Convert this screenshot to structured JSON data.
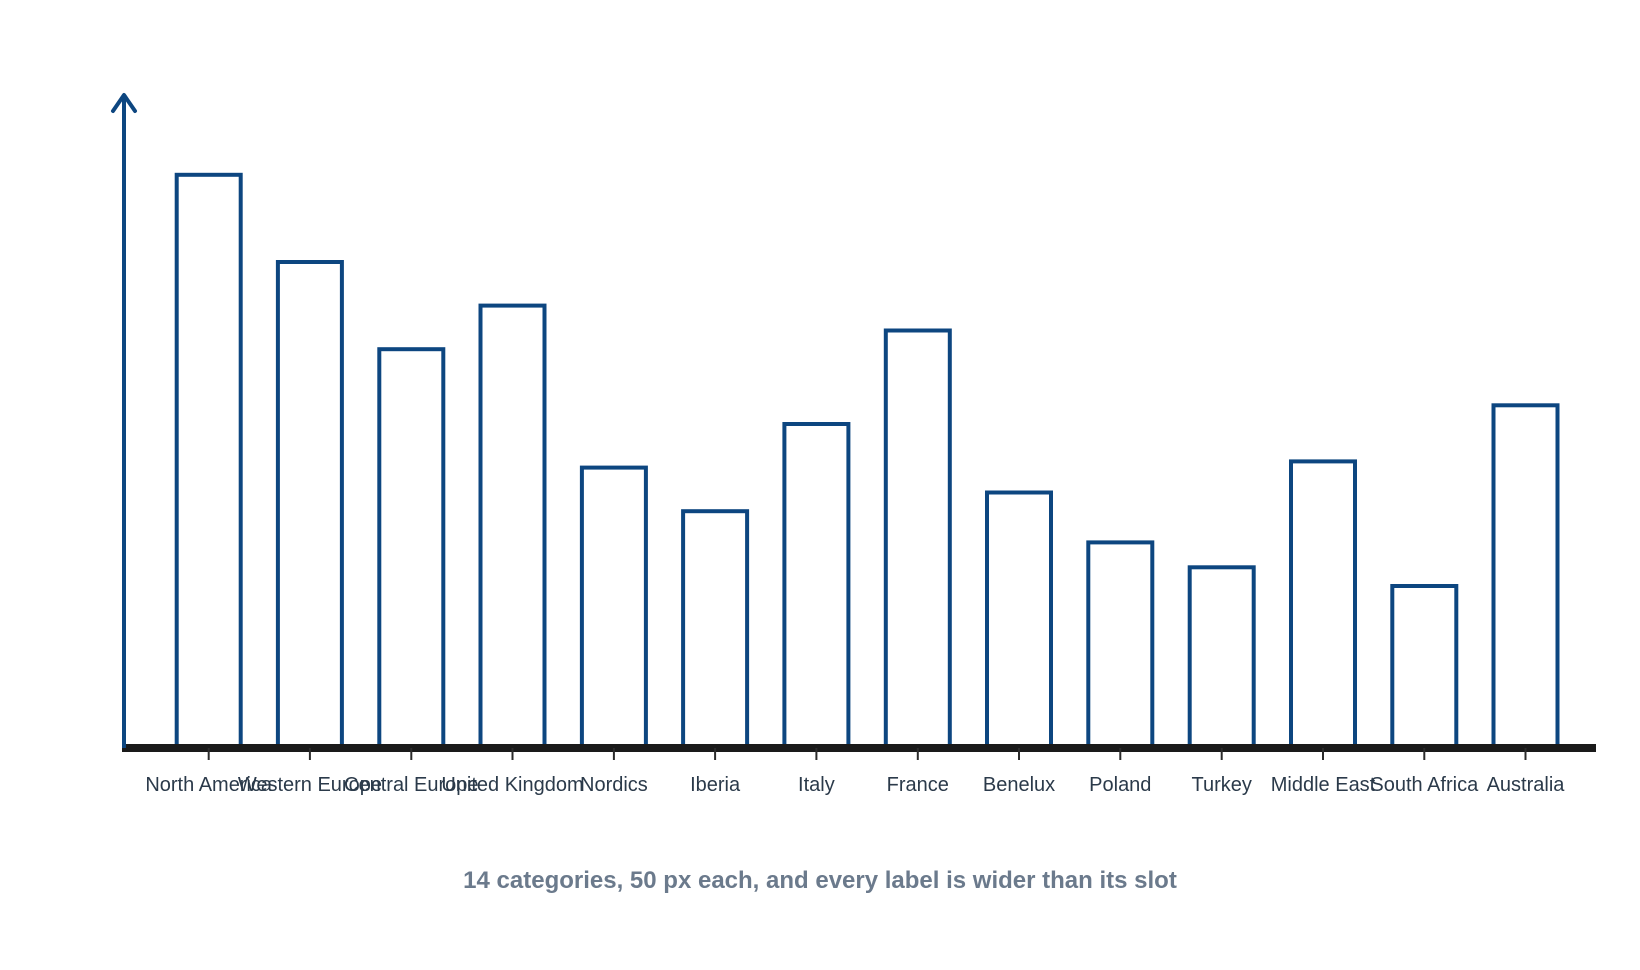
{
  "chart_data": {
    "type": "bar",
    "title": "",
    "xlabel": "",
    "ylabel": "",
    "caption": "14 categories, 50 px each, and every label is wider than its slot",
    "categories": [
      "North America",
      "Western Europe",
      "Central Europe",
      "United Kingdom",
      "Nordics",
      "Iberia",
      "Italy",
      "France",
      "Benelux",
      "Poland",
      "Turkey",
      "Middle East",
      "South Africa",
      "Australia"
    ],
    "values": [
      92,
      78,
      64,
      71,
      45,
      38,
      52,
      67,
      41,
      33,
      29,
      46,
      26,
      55
    ],
    "ylim": [
      0,
      104
    ],
    "y_tick_labels": "none",
    "grid": false,
    "legend": "none",
    "colors": {
      "bar_stroke": "#0d4680",
      "bar_fill": "#ffffff",
      "axis_x": "#1a1a1a",
      "axis_y": "#0d4680",
      "label": "#2b3a4a",
      "caption": "#6b7a8c"
    }
  }
}
